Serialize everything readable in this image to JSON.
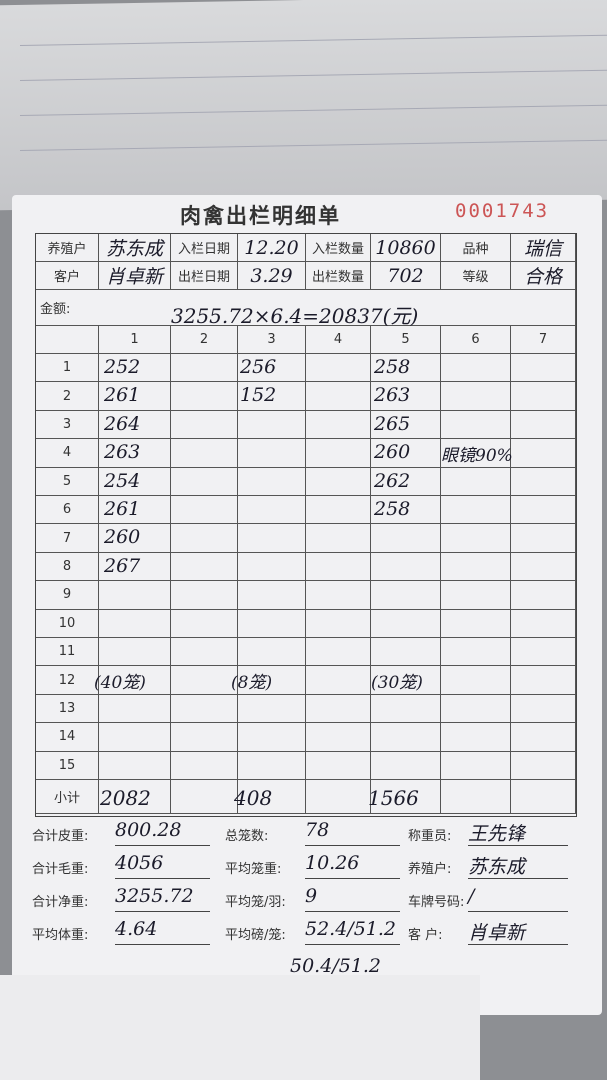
{
  "title": "肉禽出栏明细单",
  "serial": "0001743",
  "header": {
    "farmer_label": "养殖户",
    "farmer": "苏东成",
    "in_date_label": "入栏日期",
    "in_date": "12.20",
    "in_qty_label": "入栏数量",
    "in_qty": "10860",
    "breed_label": "品种",
    "breed": "瑞信",
    "customer_label": "客户",
    "customer": "肖卓新",
    "out_date_label": "出栏日期",
    "out_date": "3.29",
    "out_qty_label": "出栏数量",
    "out_qty": "702",
    "grade_label": "等级",
    "grade": "合格",
    "amount_label": "金额:",
    "amount": "3255.72×6.4=20837(元)"
  },
  "columns": [
    "1",
    "2",
    "3",
    "4",
    "5",
    "6",
    "7"
  ],
  "row_numbers": [
    "1",
    "2",
    "3",
    "4",
    "5",
    "6",
    "7",
    "8",
    "9",
    "10",
    "11",
    "12",
    "13",
    "14",
    "15"
  ],
  "col1": [
    "252",
    "261",
    "264",
    "263",
    "254",
    "261",
    "260",
    "267"
  ],
  "col3": [
    "256",
    "152"
  ],
  "col5": [
    "258",
    "263",
    "265",
    "260",
    "262",
    "258"
  ],
  "note_row4": "眼镜90%",
  "cages": {
    "col1": "(40笼)",
    "col3": "(8笼)",
    "col5": "(30笼)"
  },
  "subtotal_label": "小计",
  "subtotals": {
    "col1": "2082",
    "col3": "408",
    "col5": "1566"
  },
  "footer": {
    "tare_label": "合计皮重:",
    "tare": "800.28",
    "cages_label": "总笼数:",
    "cages": "78",
    "weigher_label": "称重员:",
    "weigher": "王先锋",
    "gross_label": "合计毛重:",
    "gross": "4056",
    "avg_cage_label": "平均笼重:",
    "avg_cage": "10.26",
    "farmer_label": "养殖户:",
    "farmer": "苏东成",
    "net_label": "合计净重:",
    "net": "3255.72",
    "per_cage_label": "平均笼/羽:",
    "per_cage": "9",
    "plate_label": "车牌号码:",
    "plate": "/",
    "avg_body_label": "平均体重:",
    "avg_body": "4.64",
    "avg_lb_label": "平均磅/笼:",
    "avg_lb": "52.4/51.2",
    "avg_lb2": "50.4/51.2",
    "customer_label": "客  户:",
    "customer": "肖卓新"
  }
}
